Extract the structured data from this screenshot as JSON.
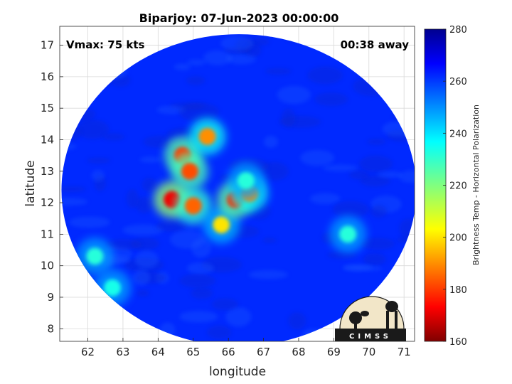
{
  "chart_data": {
    "type": "heatmap",
    "title": "Biparjoy: 07-Jun-2023 00:00:00",
    "xlabel": "longitude",
    "ylabel": "latitude",
    "xlim": [
      61.2,
      71.3
    ],
    "ylim": [
      7.6,
      17.6
    ],
    "x_ticks": [
      62,
      63,
      64,
      65,
      66,
      67,
      68,
      69,
      70,
      71
    ],
    "y_ticks": [
      8,
      9,
      10,
      11,
      12,
      13,
      14,
      15,
      16,
      17
    ],
    "grid": true,
    "annotations": {
      "left": "Vmax: 75 kts",
      "right": "00:38 away"
    },
    "colorbar": {
      "label": "Brightness Temp - Horizontal Polarization",
      "range": [
        160,
        280
      ],
      "ticks": [
        160,
        180,
        200,
        220,
        240,
        260,
        280
      ],
      "colormap": "jet"
    },
    "swath": {
      "center": [
        66.3,
        12.4
      ],
      "semi_axes_deg": [
        5.05,
        4.95
      ]
    },
    "background_value": 262,
    "features": [
      {
        "x": 64.4,
        "y": 12.1,
        "value": 172
      },
      {
        "x": 64.7,
        "y": 13.5,
        "value": 180
      },
      {
        "x": 64.9,
        "y": 13.0,
        "value": 182
      },
      {
        "x": 65.0,
        "y": 11.9,
        "value": 185
      },
      {
        "x": 65.4,
        "y": 14.1,
        "value": 190
      },
      {
        "x": 65.8,
        "y": 11.3,
        "value": 200
      },
      {
        "x": 66.2,
        "y": 12.1,
        "value": 178
      },
      {
        "x": 66.6,
        "y": 12.3,
        "value": 190
      },
      {
        "x": 66.5,
        "y": 12.7,
        "value": 232
      },
      {
        "x": 69.4,
        "y": 11.0,
        "value": 232
      },
      {
        "x": 62.2,
        "y": 10.3,
        "value": 232
      },
      {
        "x": 62.7,
        "y": 9.3,
        "value": 234
      }
    ],
    "logo": "CIMSS"
  },
  "colors": {
    "background_swath": "#1a3fe6",
    "axes_frame": "#262626",
    "grid": "#d9d9d9"
  }
}
